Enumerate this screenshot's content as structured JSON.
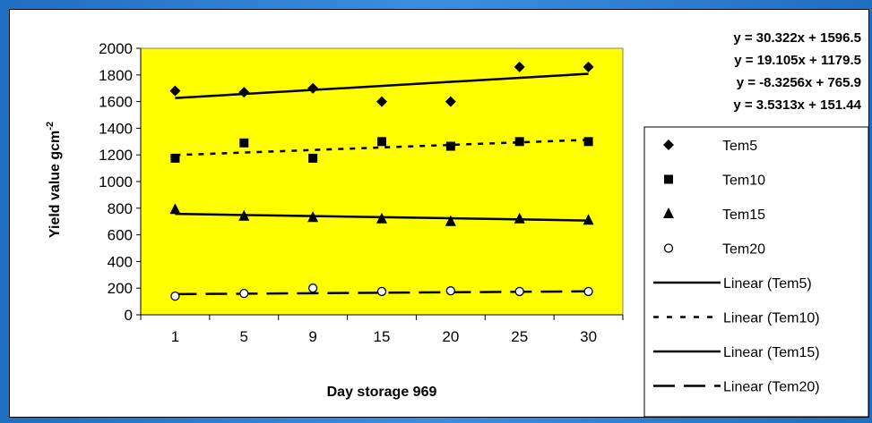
{
  "chart_data": {
    "type": "scatter",
    "title": "",
    "xlabel": "Day storage 969",
    "ylabel": "Yield value gcm",
    "ylabel_sup": "-2",
    "categories": [
      "1",
      "5",
      "9",
      "15",
      "20",
      "25",
      "30"
    ],
    "ylim": [
      0,
      2000
    ],
    "yticks": [
      "0",
      "200",
      "400",
      "600",
      "800",
      "1000",
      "1200",
      "1400",
      "1600",
      "1800",
      "2000"
    ],
    "plot_background": "#ffff00",
    "series": [
      {
        "name": "Tem5",
        "marker": "diamond",
        "values": [
          1680,
          1670,
          1700,
          1600,
          1600,
          1860,
          1860
        ]
      },
      {
        "name": "Tem10",
        "marker": "square",
        "values": [
          1175,
          1290,
          1175,
          1300,
          1265,
          1300,
          1300
        ]
      },
      {
        "name": "Tem15",
        "marker": "triangle",
        "values": [
          790,
          740,
          730,
          720,
          700,
          720,
          710
        ]
      },
      {
        "name": "Tem20",
        "marker": "circle",
        "values": [
          140,
          160,
          200,
          175,
          180,
          175,
          175
        ]
      }
    ],
    "trendlines": [
      {
        "name": "Linear (Tem5)",
        "dash": "solid",
        "slope": 30.322,
        "intercept": 1596.5
      },
      {
        "name": "Linear (Tem10)",
        "dash": "dotted",
        "slope": 19.105,
        "intercept": 1179.5
      },
      {
        "name": "Linear (Tem15)",
        "dash": "solid",
        "slope": -8.3256,
        "intercept": 765.9
      },
      {
        "name": "Linear (Tem20)",
        "dash": "longdash",
        "slope": 3.5313,
        "intercept": 151.44
      }
    ],
    "equations": [
      "y = 30.322x + 1596.5",
      "y = 19.105x + 1179.5",
      "y = -8.3256x + 765.9",
      "y = 3.5313x + 151.44"
    ]
  }
}
